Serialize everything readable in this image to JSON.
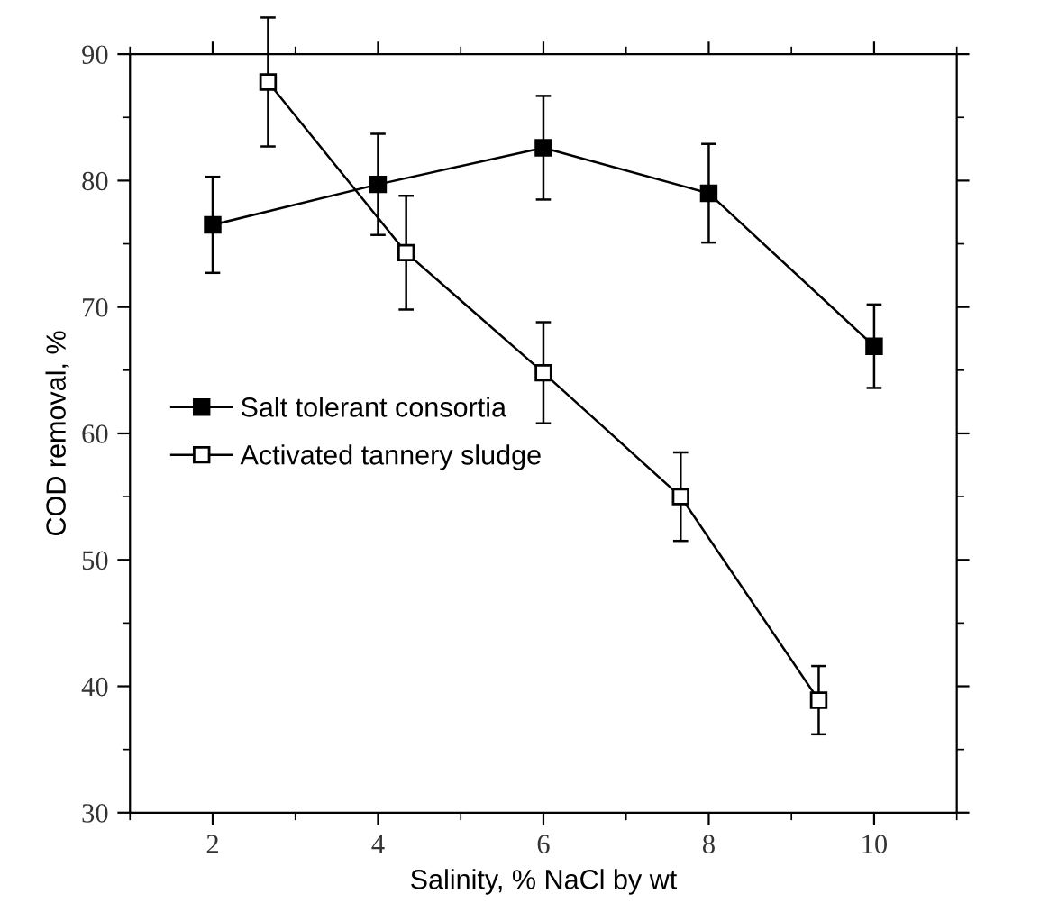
{
  "chart_data": {
    "type": "line",
    "xlabel": "Salinity, % NaCl by wt",
    "ylabel": "COD removal, %",
    "xlim": [
      1,
      11
    ],
    "xticks": [
      2,
      4,
      6,
      8,
      10
    ],
    "ylim": [
      30,
      90
    ],
    "yticks": [
      30,
      40,
      50,
      60,
      70,
      80,
      90
    ],
    "grid": false,
    "legend": "left",
    "line_style": "solid",
    "series": [
      {
        "name": "Salt tolerant consortia",
        "color": "#000000",
        "marker": "square",
        "x": [
          2,
          4,
          6,
          8,
          10
        ],
        "values": [
          76.5,
          79.7,
          82.6,
          79.0,
          66.9
        ],
        "errors": [
          3.8,
          4.0,
          4.1,
          3.9,
          3.3
        ]
      },
      {
        "name": "Activated tannery sludge",
        "color": "#000000",
        "marker": "square",
        "x": [
          2.67,
          4.34,
          6,
          7.66,
          9.33
        ],
        "values": [
          87.8,
          74.3,
          64.8,
          55.0,
          38.9
        ],
        "errors": [
          5.1,
          4.5,
          4.0,
          3.5,
          2.7
        ]
      }
    ]
  }
}
